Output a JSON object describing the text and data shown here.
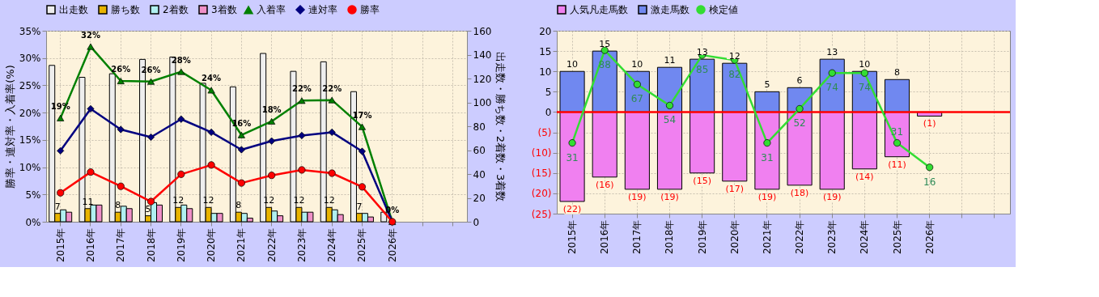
{
  "chart_data": [
    {
      "type": "bar",
      "categories": [
        "2015年",
        "2016年",
        "2017年",
        "2018年",
        "2019年",
        "2020年",
        "2021年",
        "2022年",
        "2023年",
        "2024年",
        "2025年",
        "2026年",
        null,
        null
      ],
      "ylabel": "勝率・連対率・入着率(%)",
      "y2label": "出走数・勝ち数・2着数・3着数",
      "ylim": [
        0,
        35
      ],
      "yticks": [
        {
          "value": 0,
          "label": "0%"
        },
        {
          "value": 5,
          "label": "5%"
        },
        {
          "value": 10,
          "label": "10%"
        },
        {
          "value": 15,
          "label": "15%"
        },
        {
          "value": 20,
          "label": "20%"
        },
        {
          "value": 25,
          "label": "25%"
        },
        {
          "value": 30,
          "label": "30%"
        },
        {
          "value": 35,
          "label": "35%"
        }
      ],
      "y2lim": [
        0,
        160
      ],
      "y2ticks": [
        0,
        20,
        40,
        60,
        80,
        100,
        120,
        140,
        160
      ],
      "grid": true,
      "legend": "top",
      "series": [
        {
          "name": "出走数",
          "axis": "y2",
          "color": "#eeeeee",
          "values": [
            131,
            121,
            124,
            136,
            138,
            116,
            113,
            141,
            126,
            134,
            109,
            8,
            null,
            null
          ]
        },
        {
          "name": "勝ち数",
          "axis": "y2",
          "color": "#e8b400",
          "values": [
            7,
            11,
            8,
            5,
            12,
            12,
            8,
            12,
            12,
            12,
            7,
            null,
            null,
            null
          ],
          "value_labels": [
            "7",
            "11",
            "8",
            "5",
            "12",
            "12",
            "8",
            "12",
            "12",
            "12",
            "7",
            null,
            null,
            null
          ]
        },
        {
          "name": "2着数",
          "axis": "y2",
          "color": "#b0f0f0",
          "values": [
            10,
            14,
            13,
            16,
            14,
            7,
            7,
            9,
            8,
            10,
            7,
            null,
            null,
            null
          ]
        },
        {
          "name": "3着数",
          "axis": "y2",
          "color": "#f090c8",
          "values": [
            8,
            14,
            11,
            14,
            11,
            7,
            3,
            5,
            8,
            6,
            4,
            null,
            null,
            null
          ]
        },
        {
          "name": "入着率",
          "type": "line",
          "axis": "y",
          "color": "#008000",
          "marker": "triangle",
          "values": [
            19.0,
            32.1,
            25.8,
            25.7,
            27.5,
            24.1,
            15.9,
            18.4,
            22.2,
            22.3,
            17.4,
            0,
            null,
            null
          ],
          "value_labels": [
            "19%",
            "32%",
            "26%",
            "26%",
            "28%",
            "24%",
            "16%",
            "18%",
            "22%",
            "22%",
            "17%",
            "0%",
            null,
            null
          ]
        },
        {
          "name": "連対率",
          "type": "line",
          "axis": "y",
          "color": "#000080",
          "marker": "diamond",
          "values": [
            13.0,
            20.7,
            16.9,
            15.5,
            18.8,
            16.4,
            13.2,
            14.8,
            15.8,
            16.4,
            12.9,
            0,
            null,
            null
          ]
        },
        {
          "name": "勝率",
          "type": "line",
          "axis": "y",
          "color": "#ff0000",
          "marker": "circle",
          "values": [
            5.3,
            9.1,
            6.5,
            3.7,
            8.7,
            10.4,
            7.1,
            8.5,
            9.5,
            8.9,
            6.4,
            0,
            null,
            null
          ]
        }
      ]
    },
    {
      "type": "bar",
      "stacked": true,
      "categories": [
        "2015年",
        "2016年",
        "2017年",
        "2018年",
        "2019年",
        "2020年",
        "2021年",
        "2022年",
        "2023年",
        "2024年",
        "2025年",
        "2026年",
        null,
        null
      ],
      "ylim": [
        -25,
        20
      ],
      "yticks": [
        {
          "value": -25,
          "label": "(25)"
        },
        {
          "value": -20,
          "label": "(20)"
        },
        {
          "value": -15,
          "label": "(15)"
        },
        {
          "value": -10,
          "label": "(10)"
        },
        {
          "value": -5,
          "label": "(5)"
        },
        0,
        5,
        10,
        15,
        20
      ],
      "y2lim": [
        -12.5,
        100
      ],
      "grid": true,
      "legend": "top",
      "ref_lines": [
        {
          "axis": "y",
          "value": 0,
          "color": "#ff0000"
        }
      ],
      "series": [
        {
          "name": "人気凡走馬数",
          "axis": "y",
          "color": "#f080f0",
          "values": [
            -22,
            -16,
            -19,
            -19,
            -15,
            -17,
            -19,
            -18,
            -19,
            -14,
            -11,
            -1,
            null,
            null
          ],
          "value_labels": [
            "(22)",
            "(16)",
            "(19)",
            "(19)",
            "(15)",
            "(17)",
            "(19)",
            "(18)",
            "(19)",
            "(14)",
            "(11)",
            "(1)",
            null,
            null
          ]
        },
        {
          "name": "激走馬数",
          "axis": "y",
          "color": "#7088f0",
          "values": [
            10,
            15,
            10,
            11,
            13,
            12,
            5,
            6,
            13,
            10,
            8,
            null,
            null,
            null
          ],
          "value_labels": [
            "10",
            "15",
            "10",
            "11",
            "13",
            "12",
            "5",
            "6",
            "13",
            "10",
            "8",
            null,
            null,
            null
          ]
        },
        {
          "name": "検定値",
          "type": "line",
          "axis": "y2",
          "color": "#33dd33",
          "marker": "circle",
          "values": [
            31,
            88,
            67,
            54,
            85,
            82,
            31,
            52,
            74,
            74,
            31,
            16,
            null,
            null
          ],
          "value_labels": [
            "31",
            "88",
            "67",
            "54",
            "85",
            "82",
            "31",
            "52",
            "74",
            "74",
            "31",
            "16",
            null,
            null
          ]
        }
      ]
    }
  ]
}
